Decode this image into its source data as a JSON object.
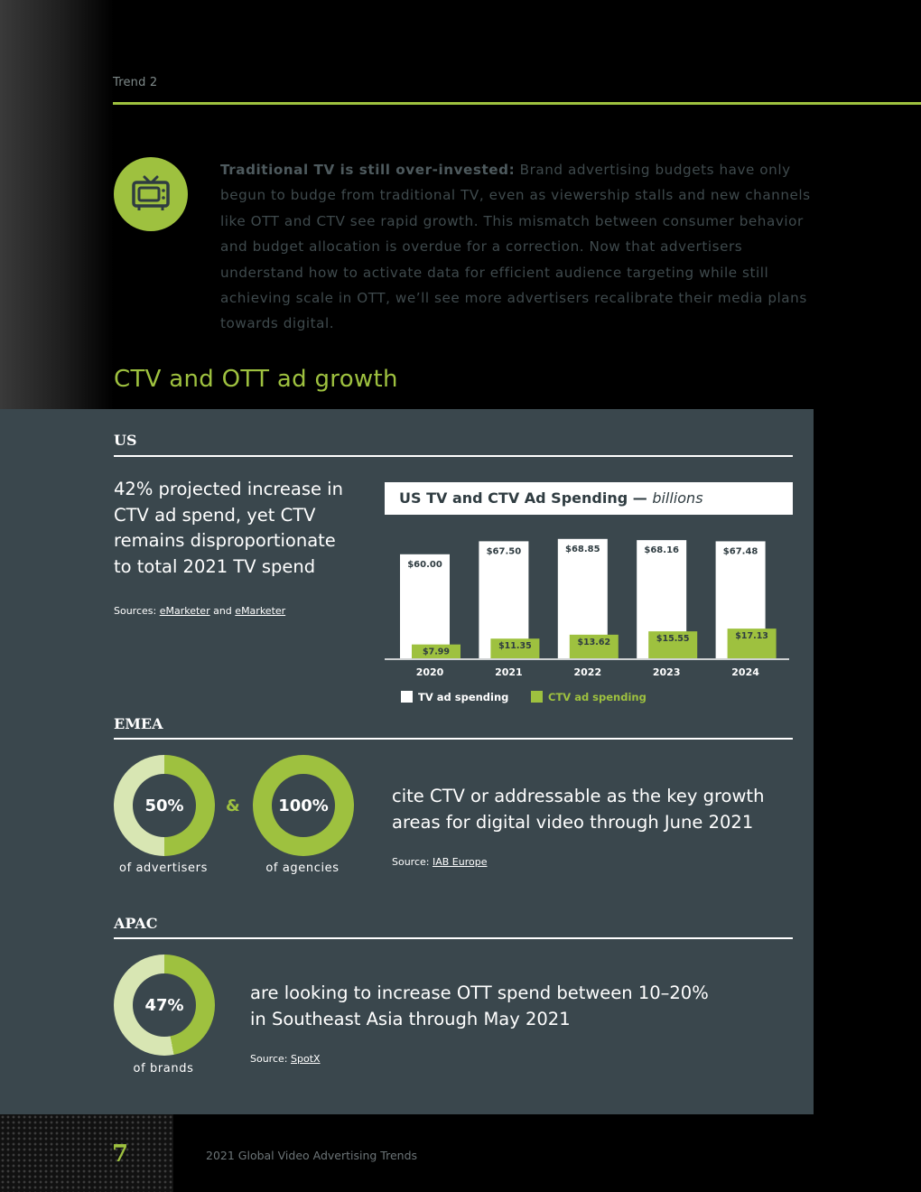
{
  "header": {
    "trend_label": "Trend 2"
  },
  "intro": {
    "bold": "Traditional TV is still over-invested:",
    "text": "Brand advertising budgets have only begun to budge from traditional TV, even as viewership stalls and new channels like OTT and CTV see rapid growth. This mismatch between consumer behavior and budget allocation is overdue for a correction. Now that advertisers understand how to activate data for efficient audience targeting while still achieving scale in OTT, we’ll see more advertisers recalibrate their media plans towards digital."
  },
  "section_title": "CTV and OTT ad growth",
  "us": {
    "label": "US",
    "headline": "42% projected increase in CTV ad spend, yet CTV remains disproportionate to total 2021 TV spend",
    "source_prefix": "Sources:",
    "source_link1": "eMarketer",
    "source_and": "and",
    "source_link2": "eMarketer"
  },
  "chart_data": {
    "type": "bar",
    "title": "US TV and CTV Ad Spending —",
    "title_unit": "billions",
    "categories": [
      "2020",
      "2021",
      "2022",
      "2023",
      "2024"
    ],
    "series": [
      {
        "name": "TV ad spending",
        "values": [
          60.0,
          67.5,
          68.85,
          68.16,
          67.48
        ],
        "labels": [
          "$60.00",
          "$67.50",
          "$68.85",
          "$68.16",
          "$67.48"
        ],
        "color": "#ffffff"
      },
      {
        "name": "CTV ad spending",
        "values": [
          7.99,
          11.35,
          13.62,
          15.55,
          17.13
        ],
        "labels": [
          "$7.99",
          "$11.35",
          "$13.62",
          "$15.55",
          "$17.13"
        ],
        "color": "#9ec13f"
      }
    ],
    "ylim": [
      0,
      75
    ],
    "legend": "bottom"
  },
  "emea": {
    "label": "EMEA",
    "donut1": {
      "value": "50%",
      "fraction": 0.5,
      "label": "of advertisers"
    },
    "amp": "&",
    "donut2": {
      "value": "100%",
      "fraction": 1.0,
      "label": "of agencies"
    },
    "text": "cite CTV or addressable as the key growth areas for digital video through June 2021",
    "source_prefix": "Source:",
    "source_link": "IAB Europe"
  },
  "apac": {
    "label": "APAC",
    "donut": {
      "value": "47%",
      "fraction": 0.47,
      "label": "of brands"
    },
    "text": "are looking to increase OTT spend between 10–20% in Southeast Asia through May 2021",
    "source_prefix": "Source:",
    "source_link": "SpotX"
  },
  "footer": {
    "page_number": "7",
    "title": "2021 Global Video Advertising Trends"
  },
  "colors": {
    "accent": "#9ec13f",
    "panel": "#3a474d",
    "donut_light": "#d8e6b3"
  }
}
